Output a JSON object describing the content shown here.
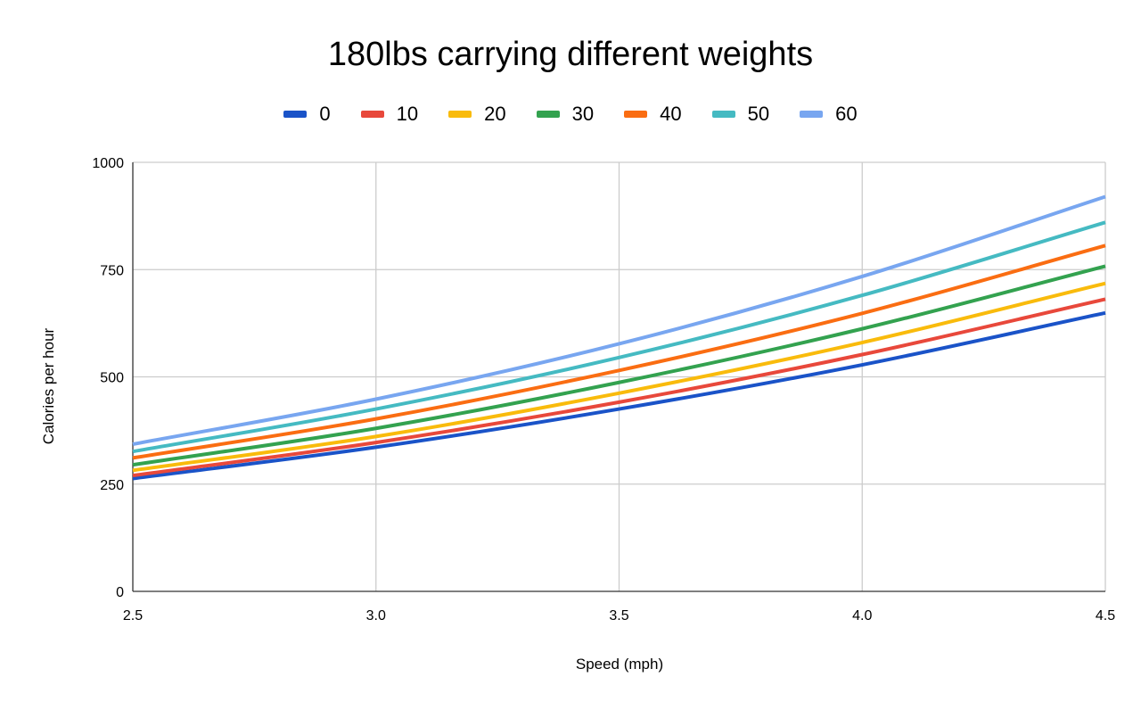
{
  "chart_data": {
    "type": "line",
    "title": "180lbs carrying different weights",
    "xlabel": "Speed (mph)",
    "ylabel": "Calories per hour",
    "xlim": [
      2.5,
      4.5
    ],
    "ylim": [
      0,
      1000
    ],
    "xticks": [
      2.5,
      3.0,
      3.5,
      4.0,
      4.5
    ],
    "xtick_labels": [
      "2.5",
      "3.0",
      "3.5",
      "4.0",
      "4.5"
    ],
    "yticks": [
      0,
      250,
      500,
      750,
      1000
    ],
    "ytick_labels": [
      "0",
      "250",
      "500",
      "750",
      "1000"
    ],
    "grid": true,
    "legend_position": "top-center",
    "x": [
      2.5,
      3.0,
      3.5,
      4.0,
      4.5
    ],
    "series": [
      {
        "name": "0",
        "color": "#1a53c8",
        "values": [
          263,
          336,
          425,
          528,
          649
        ]
      },
      {
        "name": "10",
        "color": "#e8483b",
        "values": [
          270,
          347,
          441,
          552,
          681
        ]
      },
      {
        "name": "20",
        "color": "#f9bb0c",
        "values": [
          282,
          361,
          462,
          580,
          718
        ]
      },
      {
        "name": "30",
        "color": "#33a24f",
        "values": [
          295,
          380,
          487,
          612,
          758
        ]
      },
      {
        "name": "40",
        "color": "#fa6d12",
        "values": [
          311,
          402,
          515,
          648,
          806
        ]
      },
      {
        "name": "50",
        "color": "#45bac2",
        "values": [
          326,
          425,
          545,
          690,
          860
        ]
      },
      {
        "name": "60",
        "color": "#78a6f0",
        "values": [
          343,
          448,
          577,
          734,
          920
        ]
      }
    ]
  }
}
